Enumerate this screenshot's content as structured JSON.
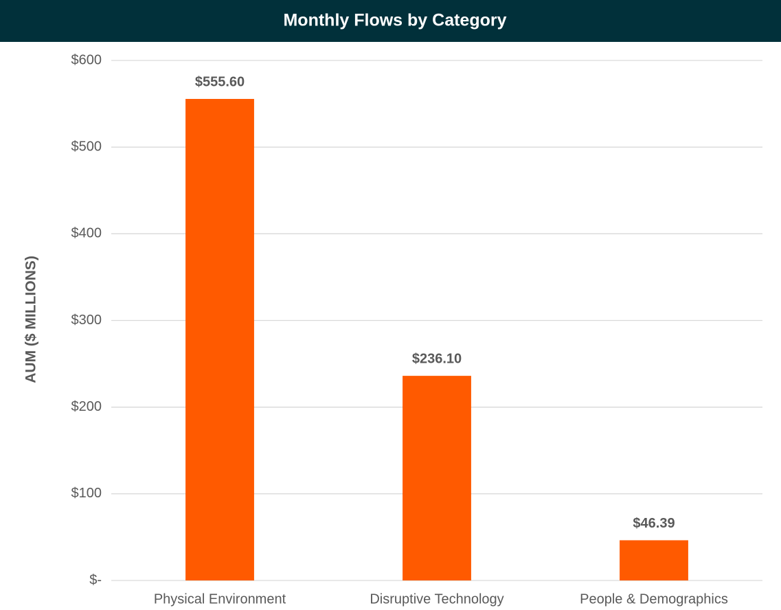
{
  "chart_data": {
    "type": "bar",
    "title": "Monthly Flows by Category",
    "y_label": "AUM ($ MILLIONS)",
    "categories": [
      "Physical Environment",
      "Disruptive Technology",
      "People & Demographics"
    ],
    "values": [
      555.6,
      236.1,
      46.39
    ],
    "value_labels": [
      "$555.60",
      "$236.10",
      "$46.39"
    ],
    "color": "#ff5a00",
    "ylim": [
      0,
      600
    ],
    "yticks": [
      {
        "value": 0,
        "label": "$-"
      },
      {
        "value": 100,
        "label": "$100"
      },
      {
        "value": 200,
        "label": "$200"
      },
      {
        "value": 300,
        "label": "$300"
      },
      {
        "value": 400,
        "label": "$400"
      },
      {
        "value": 500,
        "label": "$500"
      },
      {
        "value": 600,
        "label": "$600"
      }
    ],
    "grid": true
  }
}
